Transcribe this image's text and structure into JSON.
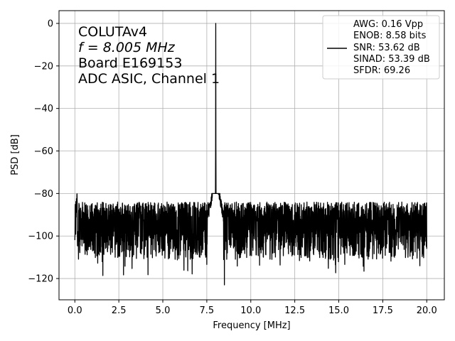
{
  "chart_data": {
    "type": "line",
    "xlabel": "Frequency [MHz]",
    "ylabel": "PSD [dB]",
    "xlim": [
      -0.9,
      21.0
    ],
    "ylim": [
      -130,
      6
    ],
    "xticks": [
      0.0,
      2.5,
      5.0,
      7.5,
      10.0,
      12.5,
      15.0,
      17.5,
      20.0
    ],
    "xtick_labels": [
      "0.0",
      "2.5",
      "5.0",
      "7.5",
      "10.0",
      "12.5",
      "15.0",
      "17.5",
      "20.0"
    ],
    "yticks": [
      0,
      -20,
      -40,
      -60,
      -80,
      -100,
      -120
    ],
    "ytick_labels": [
      "0",
      "−20",
      "−40",
      "−60",
      "−80",
      "−100",
      "−120"
    ],
    "grid": true,
    "line_color": "#000000",
    "annotation": [
      "COLUTAv4",
      "f = 8.005 MHz",
      "Board E169153",
      "ADC ASIC, Channel  1"
    ],
    "legend": {
      "placement": "top-right",
      "lines": [
        "AWG: 0.16 Vpp",
        "ENOB: 8.58 bits",
        "SNR: 53.62 dB",
        "SINAD: 53.39 dB",
        "SFDR: 69.26"
      ]
    },
    "series": [
      {
        "noise_floor_db": -95,
        "noise_min_db": -121,
        "noise_max_db": -80,
        "fundamental_mhz": 8.005,
        "fundamental_db": 0,
        "min_outlier": {
          "x": 8.5,
          "y": -123
        },
        "x_start": 0.0,
        "x_end": 20.0
      }
    ]
  }
}
